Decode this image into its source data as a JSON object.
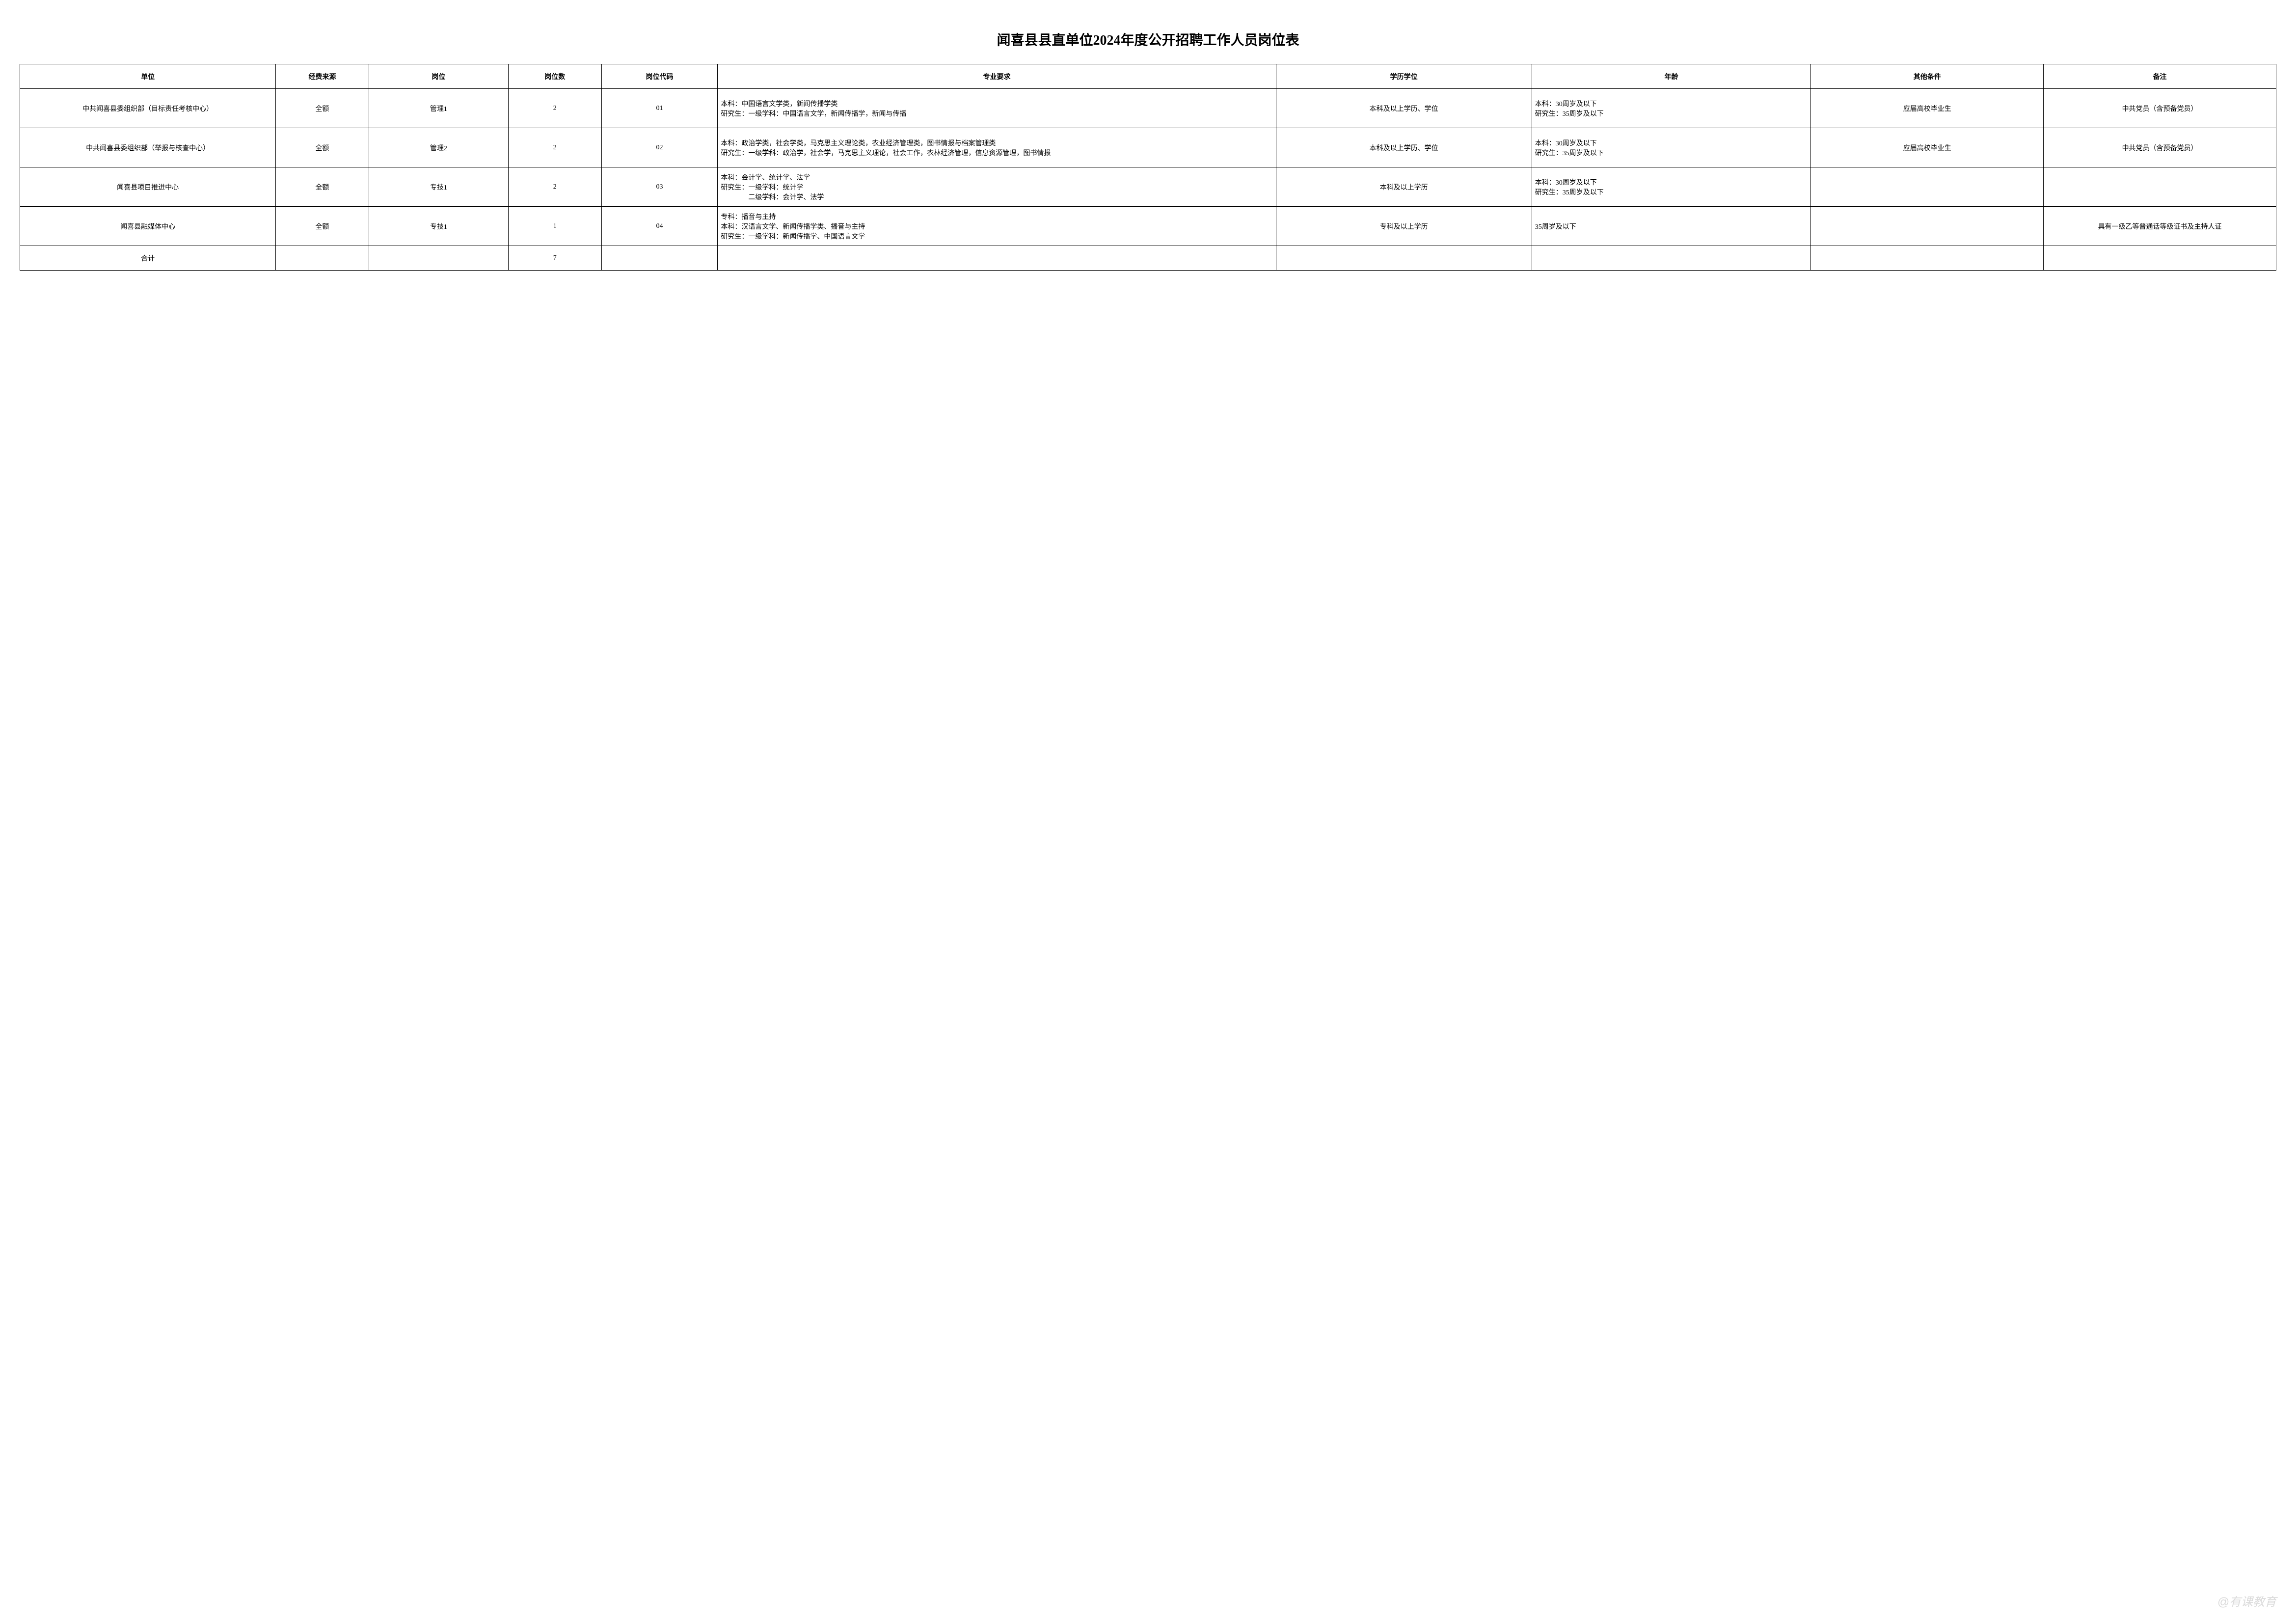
{
  "title": "闻喜县县直单位2024年度公开招聘工作人员岗位表",
  "headers": {
    "unit": "单位",
    "funding": "经费来源",
    "position": "岗位",
    "count": "岗位数",
    "code": "岗位代码",
    "major": "专业要求",
    "education": "学历学位",
    "age": "年龄",
    "other": "其他条件",
    "remark": "备注"
  },
  "rows": [
    {
      "unit": "中共闻喜县委组织部（目标责任考核中心）",
      "funding": "全额",
      "position": "管理1",
      "count": "2",
      "code": "01",
      "major": "本科：中国语言文学类，新闻传播学类\n研究生：一级学科：中国语言文学，新闻传播学，新闻与传播",
      "education": "本科及以上学历、学位",
      "age": "本科：30周岁及以下\n研究生：35周岁及以下",
      "other": "应届高校毕业生",
      "remark": "中共党员（含预备党员）"
    },
    {
      "unit": "中共闻喜县委组织部（举报与核查中心）",
      "funding": "全额",
      "position": "管理2",
      "count": "2",
      "code": "02",
      "major": "本科：政治学类，社会学类，马克思主义理论类，农业经济管理类，图书情报与档案管理类\n研究生：一级学科：政治学，社会学，马克思主义理论，社会工作，农林经济管理，信息资源管理，图书情报",
      "education": "本科及以上学历、学位",
      "age": "本科：30周岁及以下\n研究生：35周岁及以下",
      "other": "应届高校毕业生",
      "remark": "中共党员（含预备党员）"
    },
    {
      "unit": "闻喜县项目推进中心",
      "funding": "全额",
      "position": "专技1",
      "count": "2",
      "code": "03",
      "major": "本科：会计学、统计学、法学\n研究生：一级学科：统计学\n　　　　二级学科：会计学、法学",
      "education": "本科及以上学历",
      "age": "本科：30周岁及以下\n研究生：35周岁及以下",
      "other": "",
      "remark": ""
    },
    {
      "unit": "闻喜县融媒体中心",
      "funding": "全额",
      "position": "专技1",
      "count": "1",
      "code": "04",
      "major": "专科：播音与主持\n本科：汉语言文学、新闻传播学类、播音与主持\n研究生：一级学科：新闻传播学、中国语言文学",
      "education": "专科及以上学历",
      "age": "35周岁及以下",
      "other": "",
      "remark": "具有一级乙等普通话等级证书及主持人证"
    }
  ],
  "total": {
    "label": "合计",
    "count": "7"
  },
  "watermark": "@有课教育"
}
